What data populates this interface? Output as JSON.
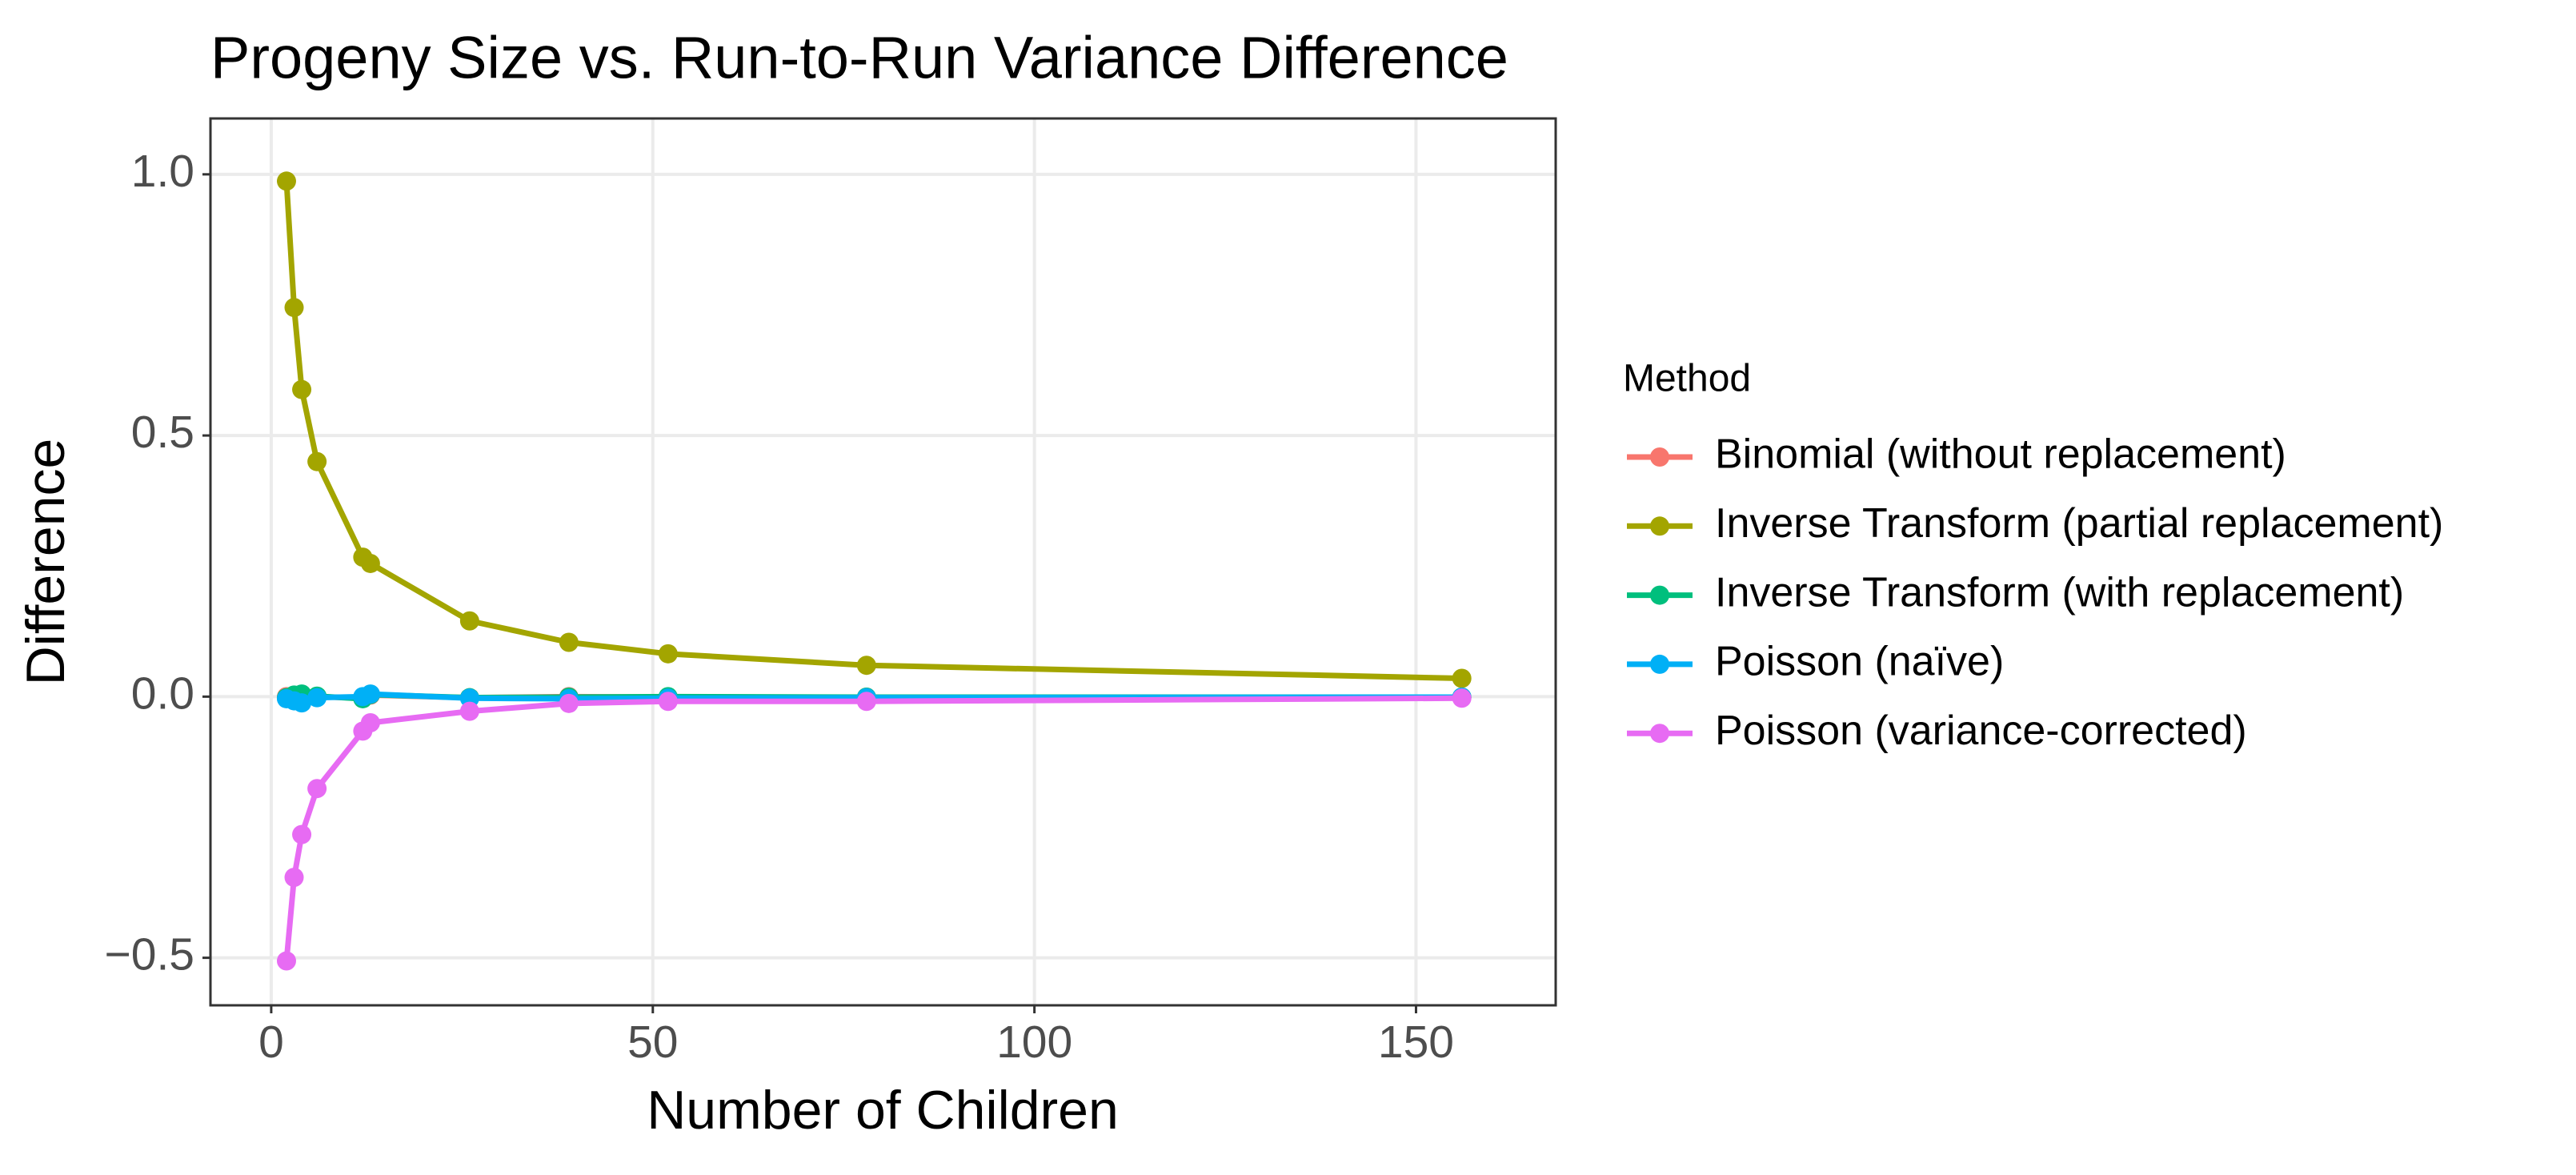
{
  "chart_data": {
    "type": "line",
    "title": "Progeny Size vs. Run-to-Run Variance Difference",
    "x_label": "Number of Children",
    "y_label": "Difference",
    "legend_title": "Method",
    "x": [
      2,
      3,
      4,
      6,
      12,
      13,
      26,
      39,
      52,
      78,
      156
    ],
    "series": [
      {
        "name": "Binomial (without replacement)",
        "color": "#F8766D",
        "values": [
          0.0,
          -0.005,
          0.002,
          0.0,
          -0.003,
          0.003,
          -0.002,
          0.0,
          -0.001,
          -0.001,
          -0.001
        ]
      },
      {
        "name": "Inverse Transform (partial replacement)",
        "color": "#A3A500",
        "values": [
          0.987,
          0.745,
          0.588,
          0.45,
          0.267,
          0.255,
          0.145,
          0.104,
          0.082,
          0.06,
          0.035
        ]
      },
      {
        "name": "Inverse Transform (with replacement)",
        "color": "#00BF7D",
        "values": [
          -0.002,
          0.003,
          0.005,
          0.001,
          -0.004,
          0.004,
          -0.002,
          -0.001,
          0.0,
          -0.001,
          -0.001
        ]
      },
      {
        "name": "Poisson (naïve)",
        "color": "#00B0F6",
        "values": [
          -0.004,
          -0.008,
          -0.012,
          -0.002,
          0.0,
          0.005,
          -0.003,
          -0.004,
          -0.003,
          -0.002,
          -0.001
        ]
      },
      {
        "name": "Poisson (variance-corrected)",
        "color": "#E76BF3",
        "values": [
          -0.506,
          -0.346,
          -0.264,
          -0.176,
          -0.066,
          -0.05,
          -0.028,
          -0.013,
          -0.009,
          -0.009,
          -0.003
        ]
      }
    ],
    "xlim": [
      -7.96,
      168.3
    ],
    "ylim": [
      -0.591,
      1.107
    ],
    "xticks": [
      0,
      50,
      100,
      150
    ],
    "yticks": [
      {
        "value": -0.5,
        "label": "−0.5"
      },
      {
        "value": 0,
        "label": "0.0"
      },
      0.5,
      {
        "value": 1,
        "label": "1.0"
      }
    ],
    "grid": true,
    "legend": "right"
  }
}
